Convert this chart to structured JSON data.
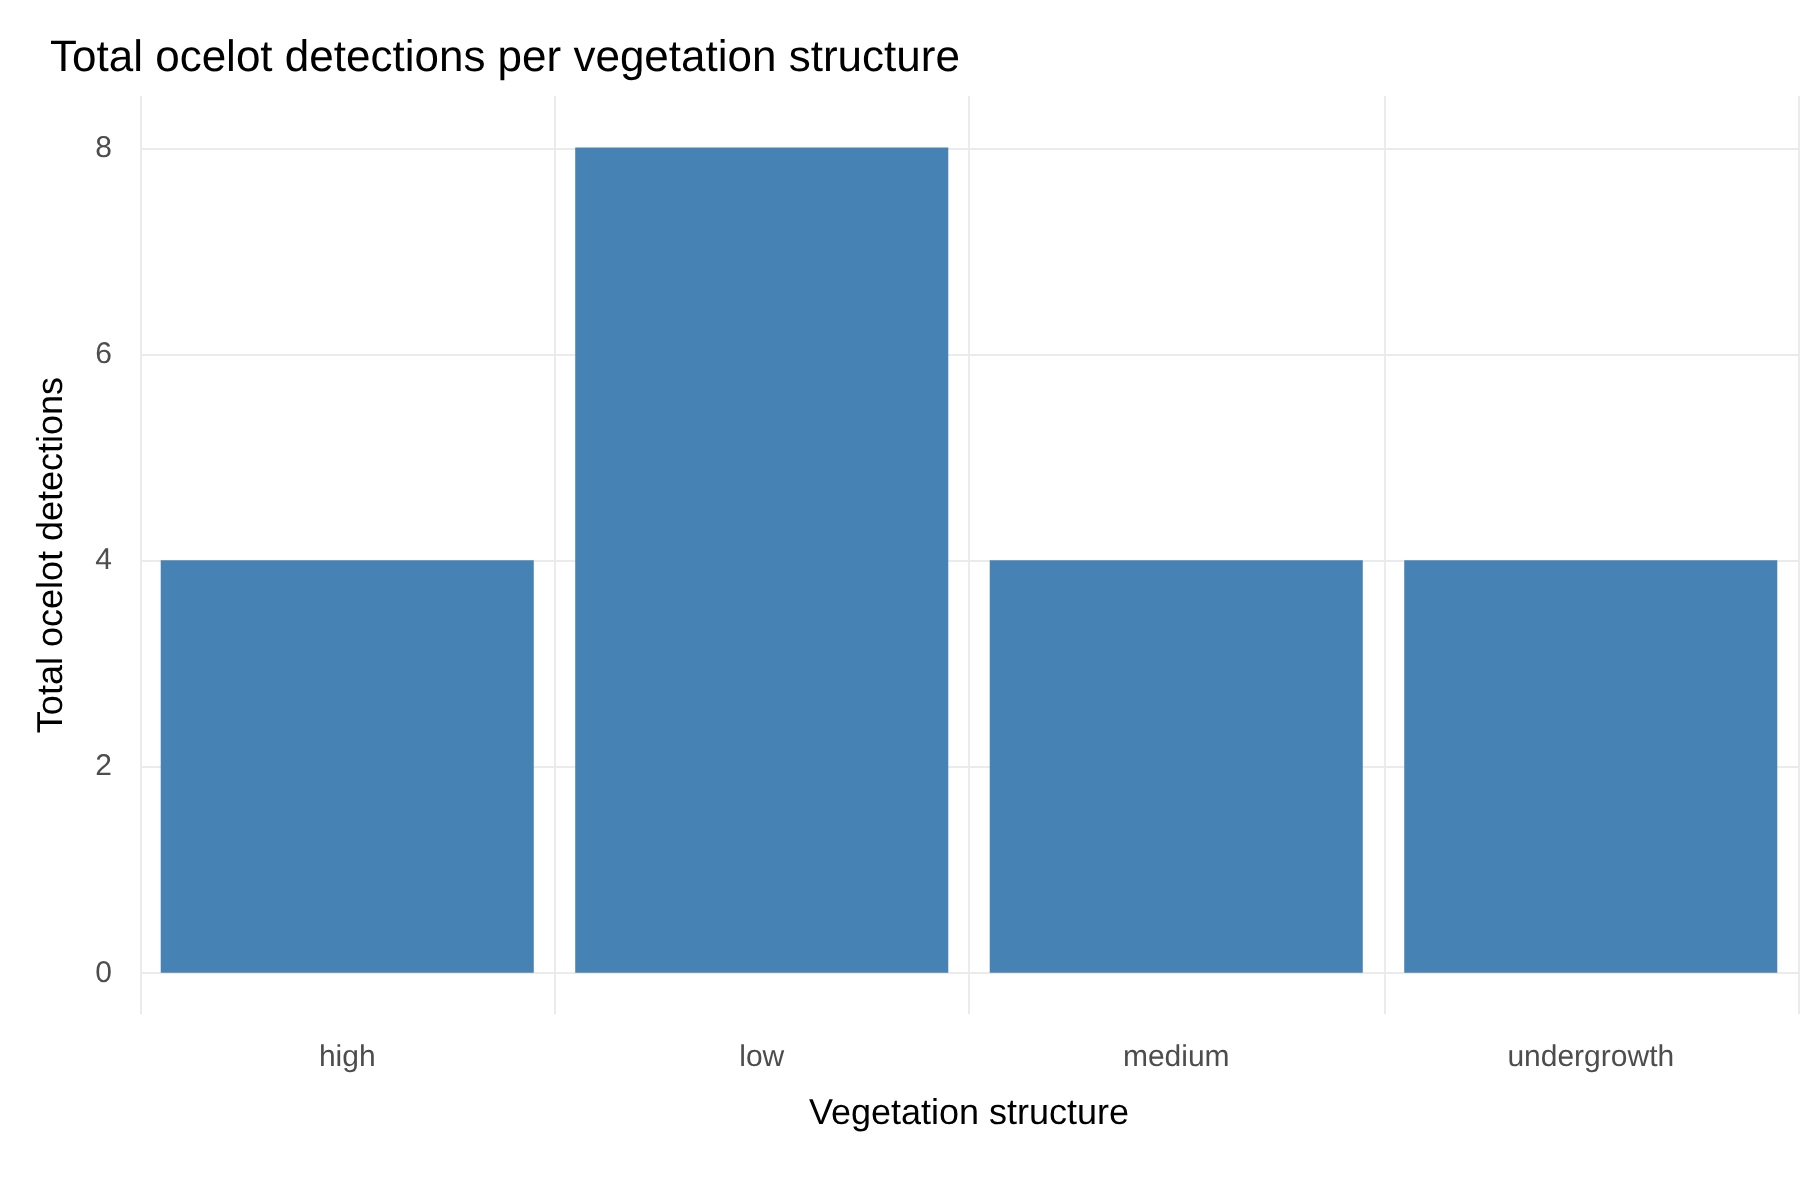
{
  "chart_data": {
    "type": "bar",
    "title": "Total ocelot detections per vegetation structure",
    "xlabel": "Vegetation structure",
    "ylabel": "Total ocelot detections",
    "categories": [
      "high",
      "low",
      "medium",
      "undergrowth"
    ],
    "values": [
      4,
      8,
      4,
      4
    ],
    "color": "#4682b4",
    "ylim": [
      -0.4,
      8.5
    ],
    "yticks": [
      0,
      2,
      4,
      6,
      8
    ],
    "grid": true
  }
}
